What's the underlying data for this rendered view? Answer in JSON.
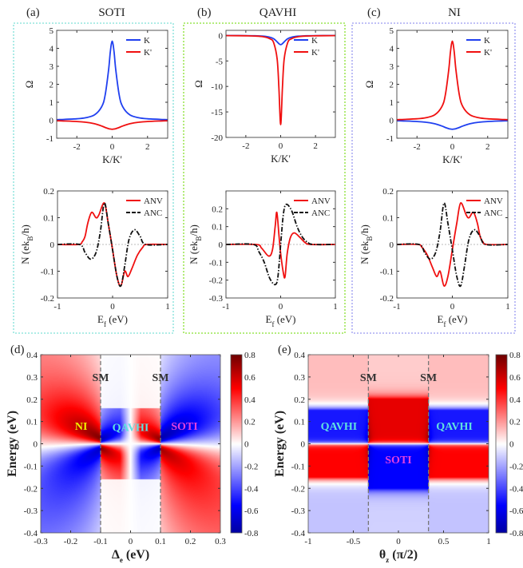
{
  "panels_top": [
    {
      "tag": "(a)",
      "title": "SOTI",
      "box_color": "#7fe0d8"
    },
    {
      "tag": "(b)",
      "title": "QAVHI",
      "box_color": "#88e030"
    },
    {
      "tag": "(c)",
      "title": "NI",
      "box_color": "#9a9af0"
    }
  ],
  "chart_data": [
    {
      "id": "a-top",
      "type": "line",
      "ylabel": "Ω",
      "xlabel": "K/K'",
      "xlim": [
        -3.14,
        3.14
      ],
      "ylim": [
        -1,
        5
      ],
      "xticks": [
        -2,
        0,
        2
      ],
      "yticks": [
        -1,
        0,
        1,
        2,
        3,
        4,
        5
      ],
      "legend": "top-right",
      "x": [
        -3,
        -2,
        -1.5,
        -1,
        -0.6,
        -0.4,
        -0.2,
        -0.1,
        0,
        0.1,
        0.2,
        0.4,
        0.6,
        1,
        1.5,
        2,
        3
      ],
      "series": [
        {
          "name": "K",
          "color": "#2040f0",
          "values": [
            0.036,
            0.079,
            0.137,
            0.3,
            0.74,
            1.38,
            2.84,
            3.86,
            4.4,
            3.86,
            2.84,
            1.38,
            0.74,
            0.3,
            0.137,
            0.079,
            0.036
          ]
        },
        {
          "name": "K'",
          "color": "#f01010",
          "values": [
            -0.033,
            -0.069,
            -0.11,
            -0.195,
            -0.32,
            -0.4,
            -0.47,
            -0.49,
            -0.5,
            -0.49,
            -0.47,
            -0.4,
            -0.32,
            -0.195,
            -0.11,
            -0.069,
            -0.033
          ]
        }
      ]
    },
    {
      "id": "b-top",
      "type": "line",
      "ylabel": "Ω",
      "xlabel": "K/K'",
      "xlim": [
        -3.14,
        3.14
      ],
      "ylim": [
        -20,
        1
      ],
      "xticks": [
        -2,
        0,
        2
      ],
      "yticks": [
        -20,
        -15,
        -10,
        -5,
        0
      ],
      "legend": "top-right",
      "x": [
        -3,
        -2,
        -1.5,
        -1,
        -0.6,
        -0.4,
        -0.2,
        -0.1,
        0,
        0.1,
        0.2,
        0.4,
        0.6,
        1,
        1.5,
        2,
        3
      ],
      "series": [
        {
          "name": "K",
          "color": "#2040f0",
          "values": [
            -0.018,
            -0.04,
            -0.069,
            -0.15,
            -0.36,
            -0.65,
            -1.25,
            -1.62,
            -1.8,
            -1.62,
            -1.25,
            -0.65,
            -0.36,
            -0.15,
            -0.069,
            -0.04,
            -0.018
          ]
        },
        {
          "name": "K'",
          "color": "#f01010",
          "values": [
            -0.028,
            -0.063,
            -0.11,
            -0.25,
            -0.67,
            -1.44,
            -4.63,
            -10.3,
            -17.5,
            -10.3,
            -4.63,
            -1.44,
            -0.67,
            -0.25,
            -0.11,
            -0.063,
            -0.028
          ]
        }
      ]
    },
    {
      "id": "c-top",
      "type": "line",
      "ylabel": "Ω",
      "xlabel": "K/K'",
      "xlim": [
        -3.14,
        3.14
      ],
      "ylim": [
        -1,
        5
      ],
      "xticks": [
        -2,
        0,
        2
      ],
      "yticks": [
        -1,
        0,
        1,
        2,
        3,
        4,
        5
      ],
      "legend": "top-right",
      "x": [
        -3,
        -2,
        -1.5,
        -1,
        -0.6,
        -0.4,
        -0.2,
        -0.1,
        0,
        0.1,
        0.2,
        0.4,
        0.6,
        1,
        1.5,
        2,
        3
      ],
      "series": [
        {
          "name": "K",
          "color": "#2040f0",
          "values": [
            -0.033,
            -0.069,
            -0.11,
            -0.195,
            -0.32,
            -0.4,
            -0.47,
            -0.49,
            -0.5,
            -0.49,
            -0.47,
            -0.4,
            -0.32,
            -0.195,
            -0.11,
            -0.069,
            -0.033
          ]
        },
        {
          "name": "K'",
          "color": "#f01010",
          "values": [
            0.036,
            0.079,
            0.137,
            0.3,
            0.74,
            1.38,
            2.84,
            3.86,
            4.4,
            3.86,
            2.84,
            1.38,
            0.74,
            0.3,
            0.137,
            0.079,
            0.036
          ]
        }
      ]
    },
    {
      "id": "a-bottom",
      "type": "line",
      "ylabel": [
        "N (ek",
        "B",
        "/h)"
      ],
      "xlabel": [
        "E",
        "f",
        " (eV)"
      ],
      "xlim": [
        -1,
        1
      ],
      "ylim": [
        -0.2,
        0.2
      ],
      "xticks": [
        -1,
        0,
        1
      ],
      "yticks": [
        -0.2,
        -0.1,
        0,
        0.1,
        0.2
      ],
      "legend": "top-right",
      "series": [
        {
          "name": "ANV",
          "color": "#f01010",
          "dash": false,
          "x": [
            -1,
            -0.62,
            -0.55,
            -0.5,
            -0.45,
            -0.38,
            -0.3,
            -0.25,
            -0.15,
            -0.08,
            0,
            0.08,
            0.15,
            0.22,
            0.28,
            0.35,
            0.45,
            0.55,
            0.62,
            1
          ],
          "values": [
            0,
            0,
            0.01,
            0.03,
            0.08,
            0.12,
            0.1,
            0.11,
            0.155,
            0.08,
            -0.02,
            -0.12,
            -0.155,
            -0.1,
            -0.12,
            -0.09,
            -0.04,
            -0.01,
            0,
            0
          ]
        },
        {
          "name": "ANC",
          "color": "#111111",
          "dash": true,
          "x": [
            -1,
            -0.6,
            -0.5,
            -0.4,
            -0.3,
            -0.22,
            -0.15,
            -0.08,
            0,
            0.08,
            0.15,
            0.22,
            0.3,
            0.4,
            0.5,
            0.6,
            1
          ],
          "values": [
            0,
            0,
            -0.03,
            -0.055,
            -0.03,
            0.05,
            0.155,
            0.08,
            -0.02,
            -0.12,
            -0.155,
            -0.08,
            0.02,
            0.055,
            0.03,
            0,
            0
          ]
        }
      ]
    },
    {
      "id": "b-bottom",
      "type": "line",
      "ylabel": [
        "N (ek",
        "B",
        "/h)"
      ],
      "xlabel": [
        "E",
        "f",
        " (eV)"
      ],
      "xlim": [
        -1,
        1
      ],
      "ylim": [
        -0.3,
        0.3
      ],
      "xticks": [
        -1,
        0,
        1
      ],
      "yticks": [
        -0.3,
        -0.2,
        -0.1,
        0,
        0.1,
        0.2
      ],
      "legend": "top-right",
      "series": [
        {
          "name": "ANV",
          "color": "#f01010",
          "dash": false,
          "x": [
            -1,
            -0.45,
            -0.35,
            -0.22,
            -0.15,
            -0.1,
            -0.07,
            -0.03,
            0,
            0.05,
            0.08,
            0.12,
            0.18,
            0.25,
            0.35,
            0.45,
            0.55,
            1
          ],
          "values": [
            0,
            0,
            -0.02,
            -0.065,
            -0.03,
            0.1,
            0.18,
            0.05,
            -0.05,
            -0.16,
            -0.18,
            -0.05,
            0.04,
            0.065,
            0.04,
            0.01,
            0,
            0
          ]
        },
        {
          "name": "ANC",
          "color": "#111111",
          "dash": true,
          "x": [
            -1,
            -0.5,
            -0.4,
            -0.3,
            -0.2,
            -0.1,
            -0.05,
            0,
            0.05,
            0.1,
            0.2,
            0.3,
            0.4,
            0.5,
            0.6,
            1
          ],
          "values": [
            0,
            0,
            -0.04,
            -0.1,
            -0.19,
            -0.225,
            -0.18,
            0,
            0.17,
            0.225,
            0.19,
            0.1,
            0.04,
            0.01,
            0,
            0
          ]
        }
      ]
    },
    {
      "id": "c-bottom",
      "type": "line",
      "ylabel": [
        "N (ek",
        "B",
        "/h)"
      ],
      "xlabel": [
        "E",
        "f",
        " (eV)"
      ],
      "xlim": [
        -1,
        1
      ],
      "ylim": [
        -0.2,
        0.2
      ],
      "xticks": [
        -1,
        0,
        1
      ],
      "yticks": [
        -0.2,
        -0.1,
        0,
        0.1,
        0.2
      ],
      "legend": "top-right",
      "series": [
        {
          "name": "ANV",
          "color": "#f01010",
          "dash": false,
          "x": [
            -1,
            -0.62,
            -0.55,
            -0.45,
            -0.35,
            -0.28,
            -0.22,
            -0.15,
            -0.08,
            0,
            0.08,
            0.15,
            0.25,
            0.3,
            0.38,
            0.45,
            0.5,
            0.55,
            0.62,
            1
          ],
          "values": [
            0,
            0,
            -0.01,
            -0.04,
            -0.09,
            -0.12,
            -0.1,
            -0.155,
            -0.12,
            -0.02,
            0.08,
            0.155,
            0.11,
            0.1,
            0.12,
            0.08,
            0.03,
            0.01,
            0,
            0
          ]
        },
        {
          "name": "ANC",
          "color": "#111111",
          "dash": true,
          "x": [
            -1,
            -0.6,
            -0.5,
            -0.4,
            -0.3,
            -0.22,
            -0.15,
            -0.08,
            0,
            0.08,
            0.15,
            0.22,
            0.3,
            0.4,
            0.5,
            0.6,
            1
          ],
          "values": [
            0,
            0,
            -0.03,
            -0.055,
            -0.03,
            0.05,
            0.155,
            0.08,
            -0.02,
            -0.12,
            -0.155,
            -0.08,
            0.02,
            0.055,
            0.03,
            0,
            0
          ]
        }
      ]
    },
    {
      "id": "d",
      "type": "heatmap",
      "tag": "(d)",
      "ylabel": "Energy (eV)",
      "xlabel": [
        "Δ",
        "e",
        " (eV)"
      ],
      "xlim": [
        -0.3,
        0.3
      ],
      "ylim": [
        -0.4,
        0.4
      ],
      "zlim": [
        -0.8,
        0.8
      ],
      "xticks": [
        -0.3,
        -0.2,
        -0.1,
        0,
        0.1,
        0.2,
        0.3
      ],
      "yticks": [
        -0.4,
        -0.3,
        -0.2,
        -0.1,
        0,
        0.1,
        0.2,
        0.3,
        0.4
      ],
      "cbticks": [
        -0.8,
        -0.6,
        -0.4,
        -0.2,
        0,
        0.2,
        0.4,
        0.6,
        0.8
      ],
      "colormap": [
        "#0000a0",
        "#0000ff",
        "#ffffff",
        "#ff0000",
        "#700000"
      ],
      "boundaries": [
        -0.1,
        0.1
      ],
      "annotations": [
        {
          "text": "SM",
          "x": -0.1,
          "y": 0.3,
          "color": "#333333"
        },
        {
          "text": "SM",
          "x": 0.1,
          "y": 0.3,
          "color": "#333333"
        },
        {
          "text": "NI",
          "x": -0.165,
          "y": 0.08,
          "color": "#f0f000"
        },
        {
          "text": "QAVHI",
          "x": 0,
          "y": 0.075,
          "color": "#60e0e0"
        },
        {
          "text": "SOTI",
          "x": 0.18,
          "y": 0.08,
          "color": "#e040e0"
        }
      ]
    },
    {
      "id": "e",
      "type": "heatmap",
      "tag": "(e)",
      "ylabel": "Energy (eV)",
      "xlabel": [
        "θ",
        "z",
        " (π/2)"
      ],
      "xlim": [
        -1,
        1
      ],
      "ylim": [
        -0.4,
        0.4
      ],
      "zlim": [
        -0.8,
        0.8
      ],
      "xticks": [
        -1,
        -0.5,
        0,
        0.5,
        1
      ],
      "yticks": [
        -0.4,
        -0.3,
        -0.2,
        -0.1,
        0,
        0.1,
        0.2,
        0.3,
        0.4
      ],
      "cbticks": [
        -0.8,
        -0.6,
        -0.4,
        -0.2,
        0,
        0.2,
        0.4,
        0.6,
        0.8
      ],
      "colormap": [
        "#0000a0",
        "#0000ff",
        "#ffffff",
        "#ff0000",
        "#700000"
      ],
      "boundaries": [
        -0.333,
        0.333
      ],
      "annotations": [
        {
          "text": "SM",
          "x": -0.333,
          "y": 0.3,
          "color": "#333333"
        },
        {
          "text": "SM",
          "x": 0.333,
          "y": 0.3,
          "color": "#333333"
        },
        {
          "text": "QAVHI",
          "x": -0.66,
          "y": 0.08,
          "color": "#60e0e0"
        },
        {
          "text": "QAVHI",
          "x": 0.62,
          "y": 0.08,
          "color": "#60e0e0"
        },
        {
          "text": "SOTI",
          "x": 0,
          "y": -0.07,
          "color": "#e040e0"
        }
      ]
    }
  ]
}
